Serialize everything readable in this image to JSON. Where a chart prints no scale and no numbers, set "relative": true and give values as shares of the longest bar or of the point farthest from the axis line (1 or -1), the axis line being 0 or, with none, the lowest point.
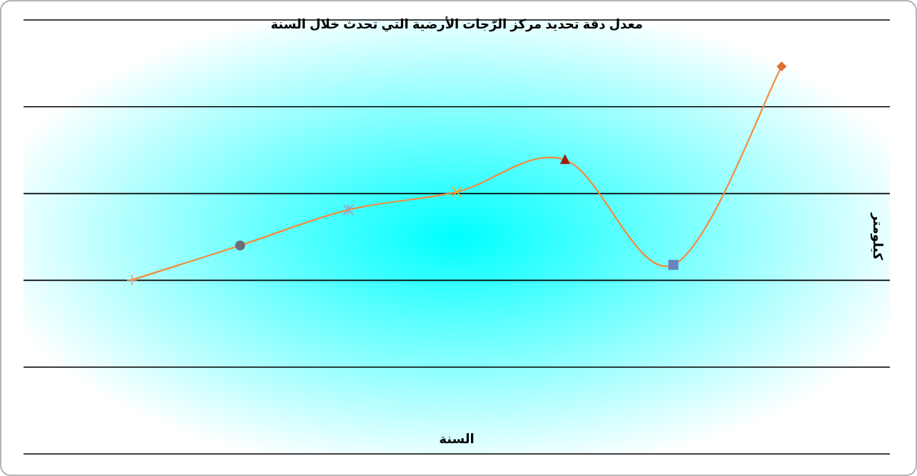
{
  "chart_data": {
    "type": "line",
    "title": "معدل دقة تحديد مركز الرّجات الأرضية التي تحدث خلال السنة",
    "xlabel": "السنة",
    "ylabel": "كيلومتر",
    "relative": true,
    "grid": "y",
    "categories": [
      null,
      null,
      null,
      null,
      null,
      null,
      null
    ],
    "series": [
      {
        "marker": "cross",
        "color": "#f58a3a",
        "colors": [
          "#f79a6c",
          "#6b6e78",
          "#9aa2c0",
          "#e0b030",
          "#9c2010",
          "#6a84c0",
          "#e07030"
        ],
        "values": [
          0.449,
          0.538,
          0.63,
          0.676,
          0.759,
          0.488,
          1
        ]
      }
    ]
  }
}
